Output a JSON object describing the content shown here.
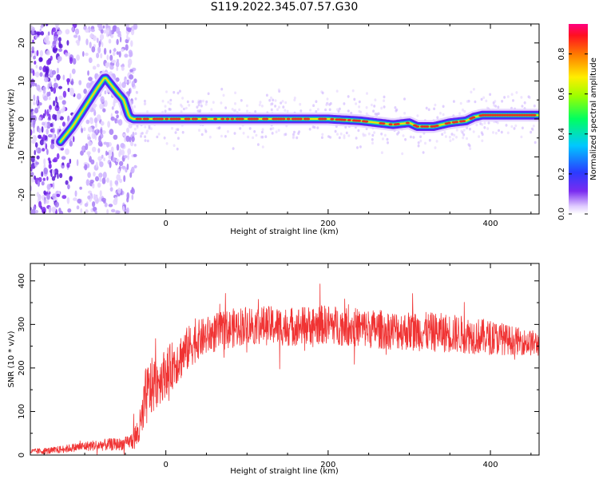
{
  "title": "S119.2022.345.07.57.G30",
  "colors": {
    "snr_line": "#f03333",
    "ridge": "#22e0a0",
    "ridge_core": "#e83020",
    "scatter": "#7c2cf0"
  },
  "chart_data": [
    {
      "type": "heatmap",
      "xlabel": "Height of straight line (km)",
      "ylabel": "Frequency (Hz)",
      "xlim": [
        -167,
        460
      ],
      "ylim": [
        -25,
        25
      ],
      "xticks": [
        0,
        200,
        400
      ],
      "yticks": [
        -20,
        -10,
        0,
        10,
        20
      ],
      "grid": false,
      "ridge": {
        "x": [
          -130,
          -115,
          -100,
          -85,
          -75,
          -60,
          -52,
          -45,
          -40,
          0,
          100,
          200,
          240,
          260,
          280,
          300,
          310,
          330,
          350,
          370,
          380,
          390,
          400,
          460
        ],
        "y": [
          -6,
          -2,
          3,
          8,
          11,
          7,
          5,
          0.5,
          0,
          0,
          0,
          0,
          -0.5,
          -1,
          -1.5,
          -1,
          -2,
          -2,
          -1,
          -0.5,
          0.5,
          1,
          1,
          1
        ]
      },
      "colorbar": {
        "label": "Normalized spectral amplitude",
        "ticks": [
          0.0,
          0.2,
          0.4,
          0.6,
          0.8
        ],
        "tick_labels": [
          "0.0",
          "0.2",
          "0.4",
          "0.6",
          "0.8"
        ],
        "range": [
          0,
          0.95
        ],
        "colormap": "gist_rainbow"
      }
    },
    {
      "type": "line",
      "xlabel": "Height of straight line (km)",
      "ylabel": "SNR (10 * v/v)",
      "xlim": [
        -167,
        460
      ],
      "ylim": [
        0,
        440
      ],
      "xticks": [
        0,
        200,
        400
      ],
      "yticks": [
        0,
        100,
        200,
        300,
        400
      ],
      "grid": false,
      "series": [
        {
          "x": [
            -167,
            -140,
            -110,
            -90,
            -70,
            -55,
            -45,
            -38,
            -32,
            -28,
            -25,
            -20,
            -15,
            -10,
            0,
            10,
            20,
            30,
            40,
            60,
            80,
            100,
            150,
            200,
            250,
            300,
            350,
            400,
            440,
            460
          ],
          "values": [
            8,
            10,
            18,
            22,
            24,
            25,
            30,
            40,
            60,
            90,
            130,
            150,
            160,
            170,
            190,
            210,
            230,
            250,
            265,
            280,
            290,
            300,
            295,
            300,
            290,
            285,
            280,
            270,
            260,
            255
          ],
          "spread": [
            6,
            8,
            10,
            12,
            14,
            14,
            15,
            30,
            45,
            60,
            70,
            70,
            65,
            60,
            55,
            55,
            55,
            50,
            45,
            45,
            45,
            45,
            45,
            45,
            45,
            45,
            45,
            40,
            30,
            30
          ]
        }
      ]
    }
  ]
}
